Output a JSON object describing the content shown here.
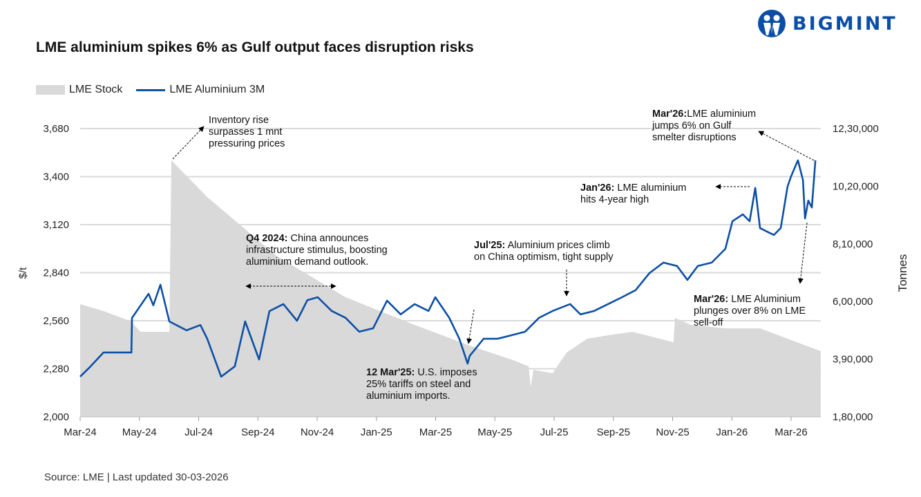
{
  "title": "LME aluminium spikes 6% as Gulf output faces disruption risks",
  "logo": {
    "text": "BIGMINT",
    "color": "#0a4ea8"
  },
  "source": "Source: LME | Last updated 30-03-2026",
  "annotations": [
    {
      "bold": "",
      "text": "Inventory rise surpasses 1 mnt pressuring prices",
      "lines": [
        "Inventory rise",
        "surpasses 1 mnt",
        "pressuring prices"
      ]
    },
    {
      "bold": "Q4 2024:",
      "lines": [
        " China announces",
        "infrastructure stimulus, boosting",
        "aluminium demand outlook."
      ]
    },
    {
      "bold": "12 Mar'25:",
      "lines": [
        " U.S. imposes",
        "25% tariffs on steel and",
        "aluminium imports."
      ]
    },
    {
      "bold": "Jul'25:",
      "lines": [
        " Aluminium prices climb",
        "on China optimism, tight supply"
      ]
    },
    {
      "bold": "Jan'26:",
      "lines": [
        " LME aluminium",
        "hits 4-year high"
      ]
    },
    {
      "bold": "Mar'26:",
      "lines": [
        "LME aluminium",
        "jumps 6% on Gulf",
        "smelter disruptions"
      ]
    },
    {
      "bold": "Mar'26:",
      "lines": [
        " LME Aluminium",
        "plunges over 8% on LME",
        "sell-off"
      ]
    }
  ],
  "chart_data": {
    "type": "line+area",
    "title": "LME aluminium spikes 6% as Gulf output faces disruption risks",
    "legend": [
      "LME Stock",
      "LME Aluminium 3M"
    ],
    "legend_position": "top-left",
    "colors": {
      "price": "#0b4fa6",
      "stock": "#d9d9d9",
      "grid": "#d9d9d9"
    },
    "x_ticks": [
      "Mar-24",
      "May-24",
      "Jul-24",
      "Sep-24",
      "Nov-24",
      "Jan-25",
      "Mar-25",
      "May-25",
      "Jul-25",
      "Sep-25",
      "Nov-25",
      "Jan-26",
      "Mar-26"
    ],
    "x_unit": "months since Mar-24",
    "x_range": [
      0,
      25
    ],
    "ylabel_left": "$/t",
    "ylabel_right": "Tonnes",
    "ylim_left": [
      2000,
      3680
    ],
    "yticks_left": [
      "2,000",
      "2,280",
      "2,560",
      "2,840",
      "3,120",
      "3,400",
      "3,680"
    ],
    "ylim_right": [
      180000,
      1230000
    ],
    "yticks_right": [
      "1,80,000",
      "3,90,000",
      "6,00,000",
      "8,10,000",
      "10,20,000",
      "12,30,000"
    ],
    "grid": true,
    "series": [
      {
        "name": "LME Aluminium 3M",
        "axis": "left",
        "type": "line",
        "x": [
          0,
          0.33,
          0.79,
          1.73,
          1.75,
          2.31,
          2.47,
          2.71,
          3.01,
          3.59,
          4.06,
          4.29,
          4.76,
          5.22,
          5.57,
          6.04,
          6.39,
          6.86,
          7.32,
          7.67,
          8.02,
          8.49,
          8.96,
          9.42,
          9.89,
          10.36,
          10.82,
          11.29,
          11.76,
          11.99,
          12.46,
          12.8,
          13.08,
          13.15,
          13.62,
          14.09,
          14.55,
          15.02,
          15.49,
          15.95,
          16.54,
          16.89,
          17.35,
          17.82,
          18.29,
          18.75,
          19.22,
          19.69,
          20.15,
          20.5,
          20.85,
          21.32,
          21.78,
          22.02,
          22.37,
          22.6,
          22.79,
          22.95,
          23.18,
          23.42,
          23.65,
          23.88,
          24,
          24.23,
          24.4,
          24.47,
          24.58,
          24.7,
          24.82
        ],
        "values": [
          2234,
          2290,
          2375,
          2375,
          2576,
          2717,
          2650,
          2770,
          2556,
          2504,
          2535,
          2455,
          2234,
          2294,
          2556,
          2334,
          2616,
          2657,
          2560,
          2680,
          2697,
          2617,
          2577,
          2496,
          2516,
          2677,
          2597,
          2657,
          2617,
          2697,
          2577,
          2455,
          2310,
          2355,
          2455,
          2455,
          2475,
          2496,
          2577,
          2617,
          2657,
          2597,
          2617,
          2657,
          2697,
          2738,
          2838,
          2899,
          2879,
          2798,
          2879,
          2899,
          2979,
          3140,
          3180,
          3140,
          3334,
          3100,
          3080,
          3060,
          3100,
          3342,
          3402,
          3495,
          3380,
          3156,
          3260,
          3220,
          3495
        ]
      },
      {
        "name": "LME Stock",
        "axis": "right",
        "type": "area",
        "x": [
          0,
          0.79,
          1.73,
          2.03,
          3.01,
          3.08,
          4.29,
          6.62,
          8.96,
          11.29,
          13.15,
          14.55,
          15.14,
          15.21,
          15.3,
          15.95,
          16.42,
          17.12,
          17.82,
          18.64,
          20.03,
          20.08,
          20.62,
          21.78,
          22.95,
          23.88,
          25
        ],
        "values": [
          590400,
          565200,
          527500,
          489700,
          489700,
          1114200,
          980700,
          767000,
          615600,
          515000,
          439400,
          389000,
          363800,
          288300,
          351200,
          338600,
          414200,
          464500,
          477100,
          489700,
          452000,
          540100,
          515000,
          502300,
          502300,
          464500,
          419200
        ]
      }
    ]
  }
}
